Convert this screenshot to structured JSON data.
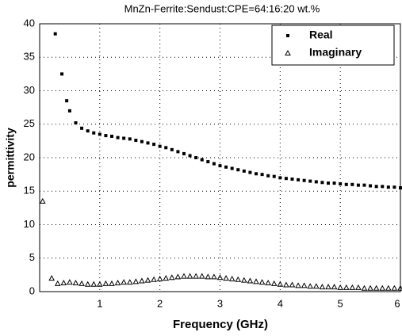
{
  "chart_data": {
    "type": "scatter",
    "title": "MnZn-Ferrite:Sendust:CPE=64:16:20 wt.%",
    "x_label": "Frequency (GHz)",
    "y_label": "permittivity",
    "xlim": [
      0,
      6
    ],
    "ylim": [
      0,
      40
    ],
    "xticks": [
      1,
      2,
      3,
      4,
      5,
      6
    ],
    "yticks": [
      0,
      5,
      10,
      15,
      20,
      25,
      30,
      35,
      40
    ],
    "grid": true,
    "legend": "upper right",
    "series": [
      {
        "name": "Real",
        "color": "#000000",
        "marker": "square",
        "x": [
          0.26,
          0.37,
          0.45,
          0.5,
          0.6,
          0.7,
          0.8,
          0.9,
          1.0,
          1.1,
          1.2,
          1.3,
          1.4,
          1.5,
          1.6,
          1.7,
          1.8,
          1.9,
          2.0,
          2.1,
          2.2,
          2.3,
          2.4,
          2.5,
          2.6,
          2.7,
          2.8,
          2.9,
          3.0,
          3.1,
          3.2,
          3.3,
          3.4,
          3.5,
          3.6,
          3.7,
          3.8,
          3.9,
          4.0,
          4.1,
          4.2,
          4.3,
          4.4,
          4.5,
          4.6,
          4.7,
          4.8,
          4.9,
          5.0,
          5.1,
          5.2,
          5.3,
          5.4,
          5.5,
          5.6,
          5.7,
          5.8,
          5.9,
          6.0
        ],
        "values": [
          38.5,
          32.5,
          28.5,
          27,
          25.2,
          24.4,
          24.0,
          23.7,
          23.5,
          23.3,
          23.2,
          23.0,
          22.9,
          22.8,
          22.6,
          22.4,
          22.2,
          22.0,
          21.7,
          21.5,
          21.2,
          20.9,
          20.6,
          20.3,
          20.0,
          19.7,
          19.4,
          19.1,
          18.8,
          18.6,
          18.4,
          18.2,
          18.0,
          17.8,
          17.6,
          17.5,
          17.3,
          17.2,
          17.0,
          16.9,
          16.8,
          16.7,
          16.6,
          16.5,
          16.4,
          16.3,
          16.2,
          16.2,
          16.1,
          16.0,
          16.0,
          15.9,
          15.9,
          15.8,
          15.7,
          15.7,
          15.6,
          15.6,
          15.5
        ]
      },
      {
        "name": "Imaginary",
        "color": "#000000",
        "marker": "triangle",
        "x": [
          0.05,
          0.2,
          0.3,
          0.4,
          0.5,
          0.6,
          0.7,
          0.8,
          0.9,
          1.0,
          1.1,
          1.2,
          1.3,
          1.4,
          1.5,
          1.6,
          1.7,
          1.8,
          1.9,
          2.0,
          2.1,
          2.2,
          2.3,
          2.4,
          2.5,
          2.6,
          2.7,
          2.8,
          2.9,
          3.0,
          3.1,
          3.2,
          3.3,
          3.4,
          3.5,
          3.6,
          3.7,
          3.8,
          3.9,
          4.0,
          4.1,
          4.2,
          4.3,
          4.4,
          4.5,
          4.6,
          4.7,
          4.8,
          4.9,
          5.0,
          5.1,
          5.2,
          5.3,
          5.4,
          5.5,
          5.6,
          5.7,
          5.8,
          5.9,
          6.0
        ],
        "values": [
          13.5,
          2.0,
          1.2,
          1.3,
          1.4,
          1.3,
          1.2,
          1.1,
          1.1,
          1.1,
          1.2,
          1.2,
          1.3,
          1.4,
          1.4,
          1.5,
          1.6,
          1.7,
          1.8,
          1.9,
          2.0,
          2.1,
          2.2,
          2.3,
          2.3,
          2.3,
          2.3,
          2.2,
          2.2,
          2.1,
          2.0,
          1.9,
          1.8,
          1.7,
          1.6,
          1.5,
          1.4,
          1.3,
          1.2,
          1.1,
          1.0,
          1.0,
          0.9,
          0.9,
          0.8,
          0.8,
          0.7,
          0.7,
          0.7,
          0.6,
          0.6,
          0.6,
          0.6,
          0.5,
          0.5,
          0.5,
          0.5,
          0.5,
          0.5,
          0.5
        ]
      }
    ]
  }
}
